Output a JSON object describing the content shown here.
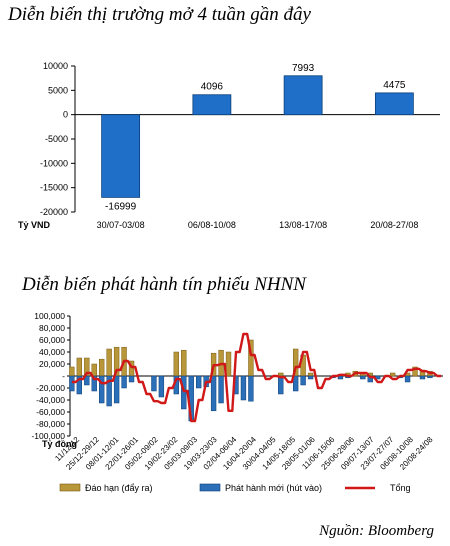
{
  "charts": {
    "title1": "Diễn biến thị trường mở 4 tuần gần đây",
    "title2": "Diễn biến phát hành tín phiếu NHNN",
    "source": "Nguồn: Bloomberg"
  },
  "chart_data": [
    {
      "type": "bar",
      "title": "Diễn biến thị trường mở 4 tuần gần đây",
      "ylabel": "Tỷ VND",
      "categories": [
        "30/07-03/08",
        "06/08-10/08",
        "13/08-17/08",
        "20/08-27/08"
      ],
      "values": [
        -16999,
        4096,
        7993,
        4475
      ],
      "ylim": [
        -20000,
        10000
      ],
      "yticks": [
        10000,
        5000,
        0,
        -5000,
        -10000,
        -15000,
        -20000
      ],
      "ytick_labels": [
        "10000",
        "5000",
        "0",
        "-5000",
        "-10000",
        "-15000",
        "-20000"
      ],
      "bar_color": "#1f6fc8",
      "grid": false
    },
    {
      "type": "bar",
      "title": "Diễn biến phát hành tín phiếu NHNN",
      "ylabel": "Tỷ đồng",
      "ylim": [
        -100000,
        100000
      ],
      "yticks": [
        100000,
        80000,
        60000,
        40000,
        20000,
        0,
        -20000,
        -40000,
        -60000,
        -80000,
        -100000
      ],
      "ytick_labels": [
        "100,000",
        "80,000",
        "60,000",
        "40,000",
        "20,000",
        "-",
        "-20,000",
        "-40,000",
        "-60,000",
        "-80,000",
        "-100,000"
      ],
      "categories": [
        "11/12/12",
        "25/12-29/12",
        "08/01-12/01",
        "22/01-26/01",
        "05/02-09/02",
        "19/02-23/02",
        "05/03-09/03",
        "19/03-23/03",
        "02/04-06/04",
        "16/04-20/04",
        "30/04-04/05",
        "14/05-18/05",
        "28/05-01/06",
        "11/06-15/06",
        "25/06-29/06",
        "09/07-13/07",
        "23/07-27/07",
        "06/08-10/08",
        "20/08-24/08"
      ],
      "x": [
        0,
        1,
        2,
        3,
        4,
        5,
        6,
        7,
        8,
        9,
        10,
        11,
        12,
        13,
        14,
        15,
        16,
        17,
        18,
        19,
        20,
        21,
        22,
        23,
        24,
        25,
        26,
        27,
        28,
        29,
        30,
        31,
        32,
        33,
        34,
        35,
        36,
        37,
        38,
        39,
        40,
        41,
        42,
        43,
        44,
        45,
        46,
        47,
        48,
        49,
        50,
        51,
        52,
        53,
        54,
        55,
        56,
        57,
        58,
        59,
        60,
        61,
        62,
        63,
        64,
        65,
        66,
        67,
        68,
        69,
        70,
        71,
        72,
        73,
        74,
        75,
        76,
        77,
        78,
        79,
        80,
        81,
        82,
        83,
        84,
        85,
        86,
        87,
        88,
        89,
        90,
        91,
        92,
        93,
        94,
        95,
        96,
        97,
        98,
        99
      ],
      "series": [
        {
          "name": "Đáo hạn (đẩy ra)",
          "color": "#b8963a",
          "values": [
            15000,
            0,
            30000,
            0,
            30000,
            0,
            20000,
            0,
            28000,
            0,
            45000,
            0,
            48000,
            0,
            48000,
            0,
            25000,
            0,
            0,
            0,
            0,
            0,
            0,
            0,
            0,
            0,
            0,
            0,
            40000,
            0,
            43000,
            0,
            0,
            0,
            0,
            0,
            0,
            0,
            38000,
            0,
            43000,
            0,
            40000,
            0,
            0,
            0,
            0,
            0,
            60000,
            0,
            0,
            0,
            0,
            0,
            0,
            0,
            5000,
            0,
            0,
            0,
            45000,
            0,
            35000,
            0,
            5000,
            0,
            0,
            0,
            0,
            0,
            0,
            0,
            3000,
            0,
            5000,
            0,
            8000,
            0,
            5000,
            0,
            5000,
            0,
            0,
            0,
            0,
            0,
            5000,
            0,
            0,
            0,
            5000,
            0,
            15000,
            0,
            10000,
            0,
            8000,
            0,
            0,
            0
          ]
        },
        {
          "name": "Phát hành mới (hút vào)",
          "color": "#2a6fb8",
          "values": [
            -25000,
            0,
            -30000,
            0,
            -15000,
            0,
            -25000,
            0,
            -45000,
            0,
            -50000,
            0,
            -45000,
            0,
            -20000,
            0,
            -10000,
            0,
            0,
            0,
            0,
            0,
            -25000,
            0,
            -35000,
            0,
            0,
            0,
            -30000,
            0,
            -55000,
            0,
            -75000,
            0,
            -20000,
            0,
            -18000,
            0,
            -58000,
            0,
            -45000,
            0,
            0,
            0,
            -30000,
            0,
            -40000,
            0,
            -42000,
            0,
            0,
            0,
            0,
            0,
            0,
            0,
            -30000,
            0,
            0,
            0,
            -25000,
            0,
            -15000,
            0,
            -5000,
            0,
            0,
            0,
            0,
            0,
            -3000,
            0,
            -5000,
            0,
            -3000,
            0,
            0,
            0,
            -5000,
            0,
            -10000,
            0,
            -5000,
            0,
            0,
            0,
            0,
            0,
            -3000,
            0,
            -10000,
            0,
            0,
            0,
            -5000,
            0,
            -3000,
            0,
            0,
            0
          ]
        },
        {
          "name": "Tổng",
          "color": "#d01818",
          "values": [
            -10000,
            -10000,
            -5000,
            -5000,
            5000,
            5000,
            -5000,
            -5000,
            -12000,
            -12000,
            -8000,
            -8000,
            10000,
            10000,
            25000,
            25000,
            15000,
            15000,
            -10000,
            -10000,
            -30000,
            -30000,
            -42000,
            -42000,
            -45000,
            -45000,
            -20000,
            -20000,
            -5000,
            -5000,
            -25000,
            -25000,
            -75000,
            -75000,
            -40000,
            -40000,
            -10000,
            -10000,
            18000,
            18000,
            20000,
            20000,
            -58000,
            -58000,
            40000,
            40000,
            70000,
            70000,
            35000,
            35000,
            10000,
            10000,
            -5000,
            -5000,
            0,
            0,
            -2000,
            -2000,
            -10000,
            -10000,
            15000,
            15000,
            40000,
            40000,
            10000,
            10000,
            -20000,
            -20000,
            -5000,
            -5000,
            0,
            0,
            2000,
            2000,
            0,
            0,
            5000,
            5000,
            5000,
            5000,
            -2000,
            -2000,
            -10000,
            -10000,
            0,
            0,
            -5000,
            -5000,
            0,
            0,
            10000,
            10000,
            12000,
            12000,
            8000,
            8000,
            5000,
            5000,
            0,
            0
          ]
        }
      ],
      "legend_placement": "bottom"
    }
  ]
}
